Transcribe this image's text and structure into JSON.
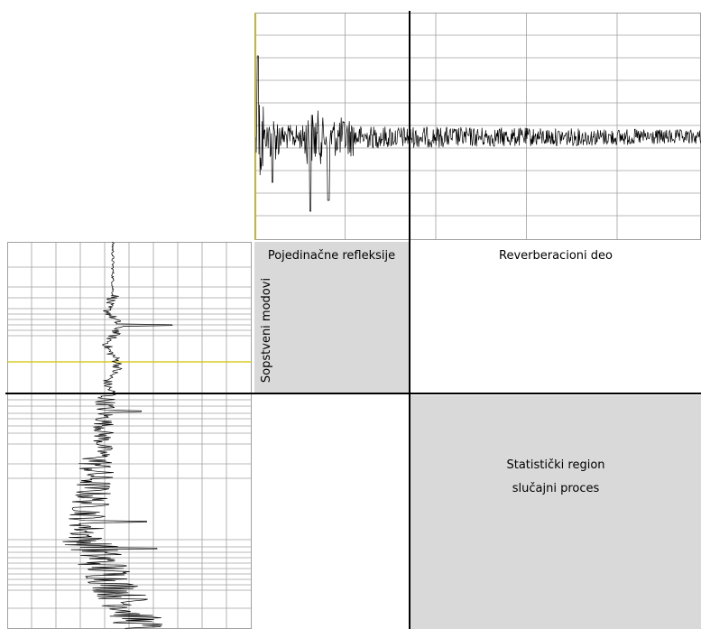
{
  "regions": {
    "single_reflections": "Pojedinačne refleksije",
    "reverberation_part": "Reverberacioni deo",
    "eigenmodes": "Sopstveni modovi",
    "statistical_region_line1": "Statistički region",
    "statistical_region_line2": "slučajni proces"
  },
  "colors": {
    "gray_region": "#d9d9d9",
    "signal": "#000000",
    "grid": "#a0a0a0",
    "marker": "#d4c200"
  }
}
